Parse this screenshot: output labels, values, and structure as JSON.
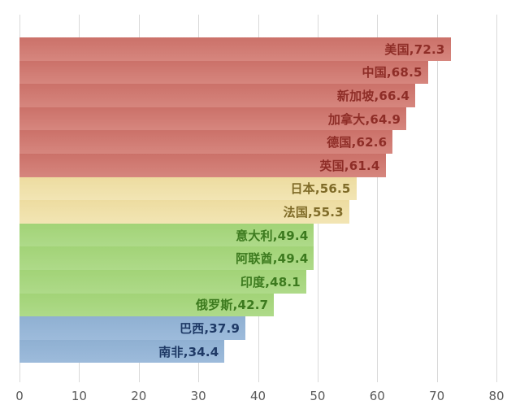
{
  "chart_data": {
    "type": "bar",
    "orientation": "horizontal",
    "title": "",
    "xlabel": "",
    "ylabel": "",
    "xlim": [
      0,
      80
    ],
    "xticks": [
      0,
      10,
      20,
      30,
      40,
      50,
      60,
      70,
      80
    ],
    "grid": "vertical-gridlines-on",
    "legend_position": "none",
    "label_format": "category,value (data label inside end of bar)",
    "categories": [
      "美国",
      "中国",
      "新加坡",
      "加拿大",
      "德国",
      "英国",
      "日本",
      "法国",
      "意大利",
      "阿联酋",
      "印度",
      "俄罗斯",
      "巴西",
      "南非"
    ],
    "values": [
      72.3,
      68.5,
      66.4,
      64.9,
      62.6,
      61.4,
      56.5,
      55.3,
      49.4,
      49.4,
      48.1,
      42.7,
      37.9,
      34.4
    ],
    "groups": [
      "red",
      "red",
      "red",
      "red",
      "red",
      "red",
      "yellow",
      "yellow",
      "green",
      "green",
      "green",
      "green",
      "blue",
      "blue"
    ],
    "palette": {
      "red": {
        "bar_top": "#cb7169",
        "bar_bottom": "#d6867e",
        "text": "#8e2d27"
      },
      "yellow": {
        "bar_top": "#eddca0",
        "bar_bottom": "#f2e5b4",
        "text": "#7f6b28"
      },
      "green": {
        "bar_top": "#a2d377",
        "bar_bottom": "#aeda89",
        "text": "#3c7a1e"
      },
      "blue": {
        "bar_top": "#8fb0d2",
        "bar_bottom": "#9dbbdb",
        "text": "#1f3a66"
      }
    },
    "gridline_color": "#d9d9d9",
    "axis_text_color": "#595959"
  }
}
